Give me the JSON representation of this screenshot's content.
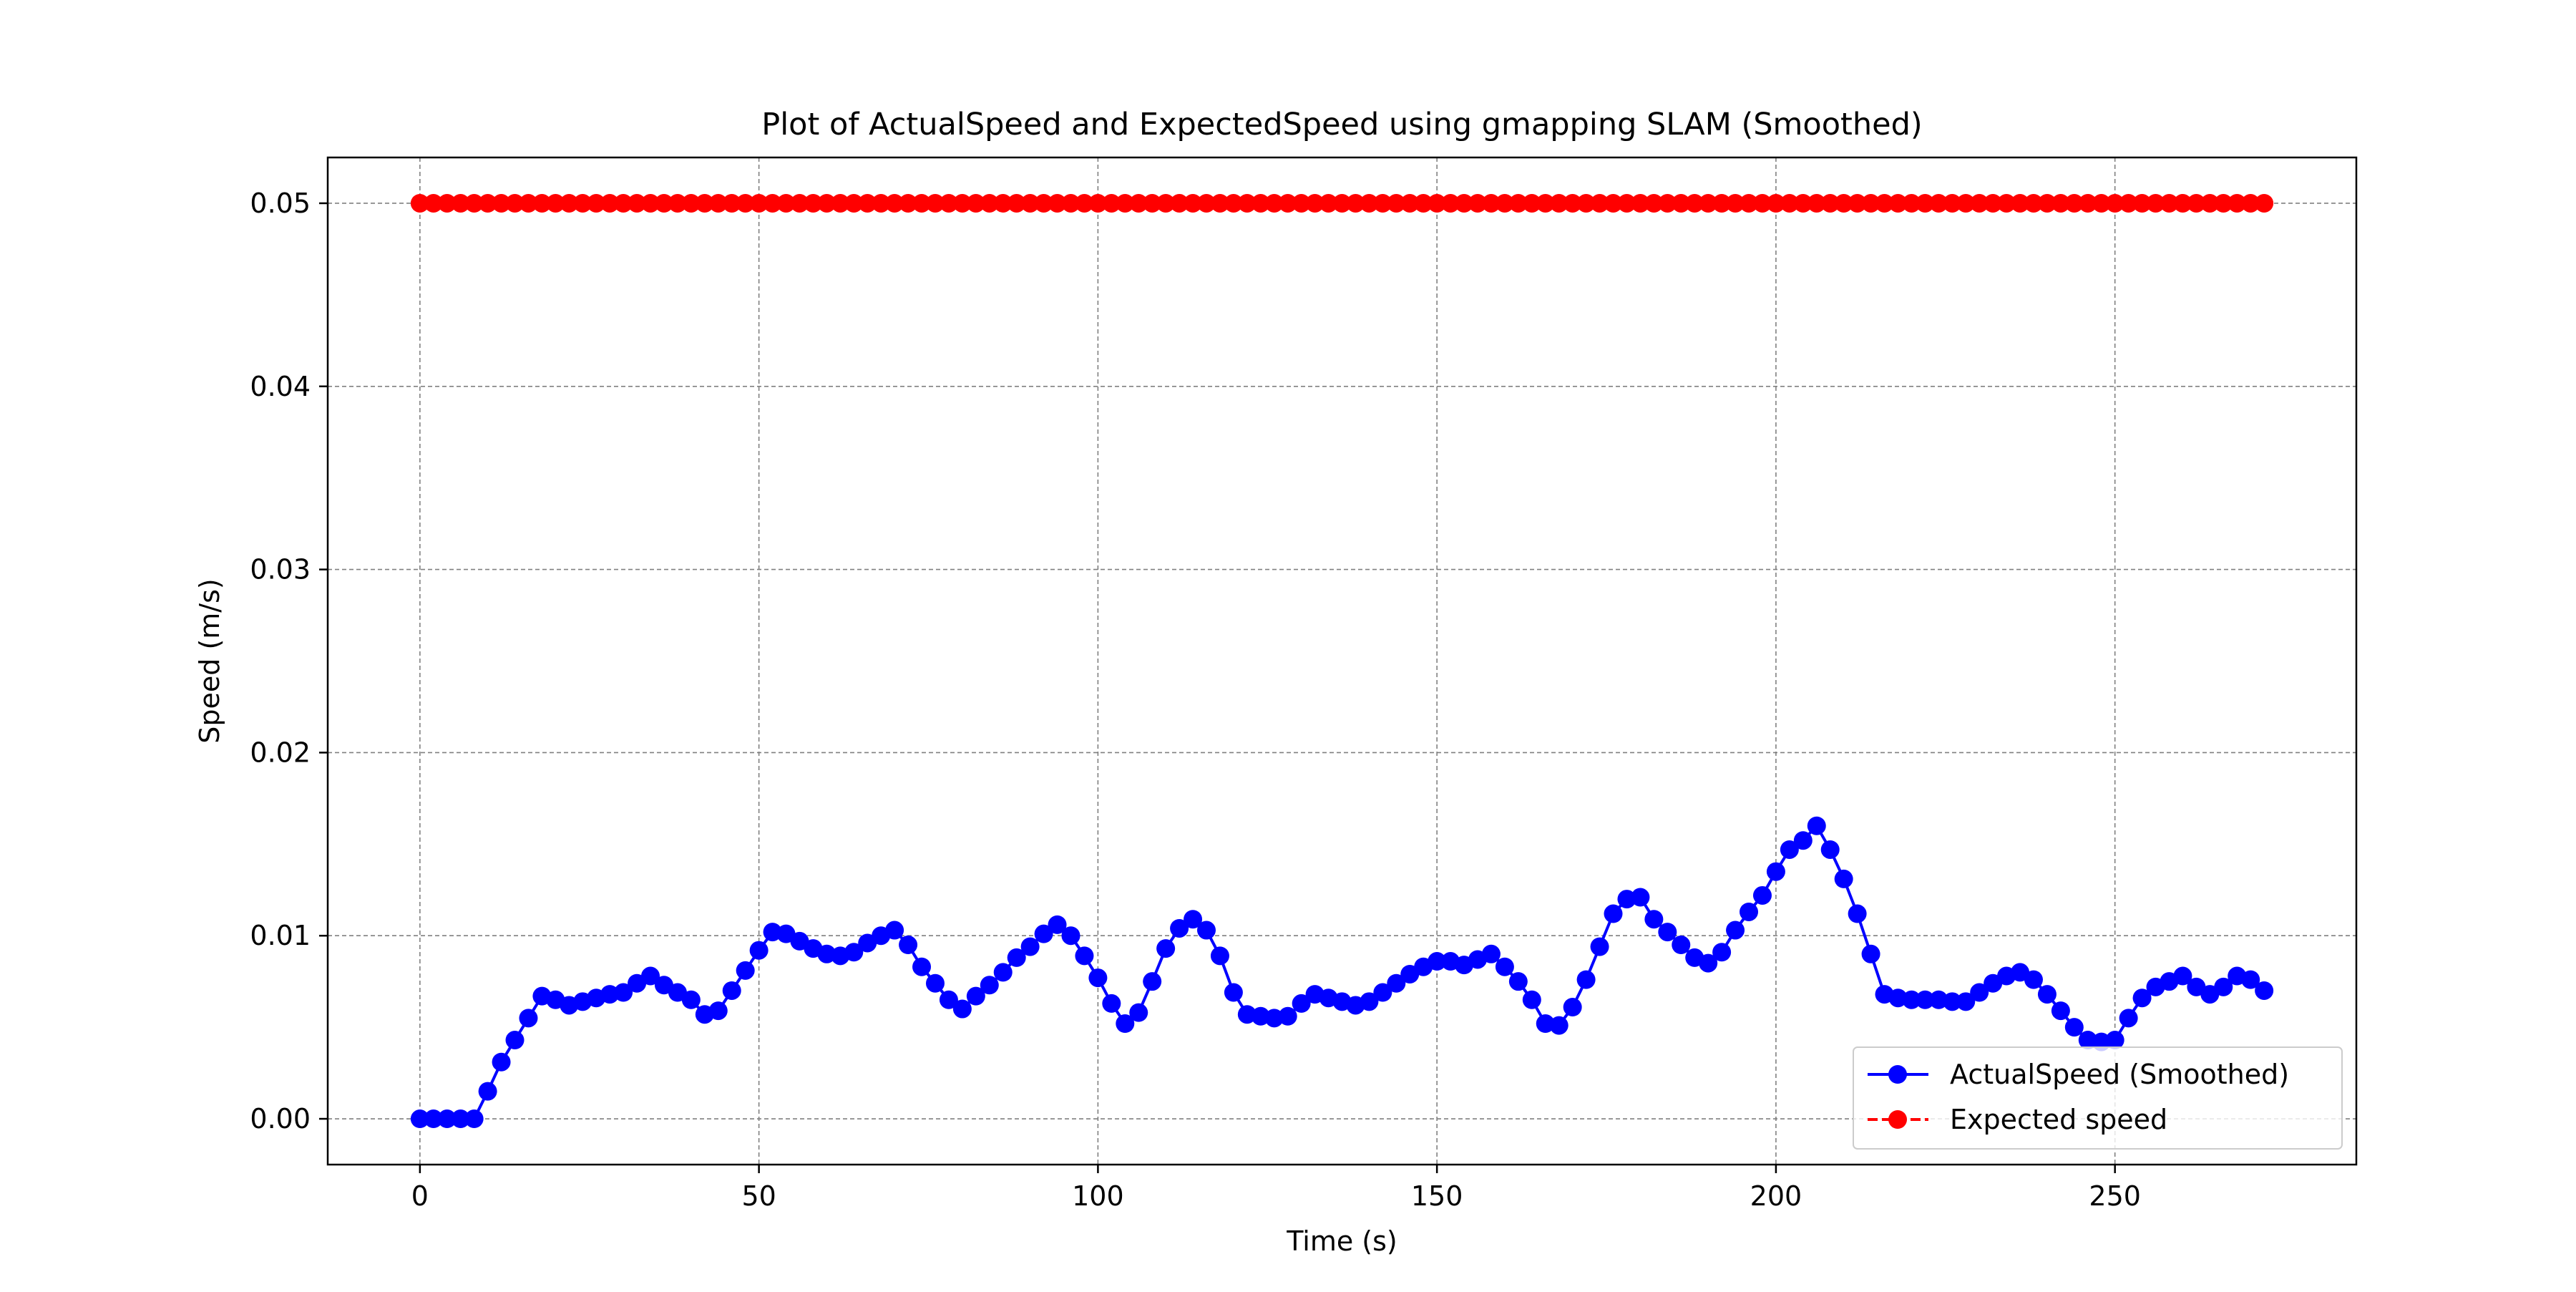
{
  "chart_data": {
    "type": "line",
    "title": "Plot of ActualSpeed and ExpectedSpeed using gmapping SLAM (Smoothed)",
    "xlabel": "Time (s)",
    "ylabel": "Speed (m/s)",
    "xlim": [
      -13.6,
      285.6
    ],
    "ylim": [
      -0.0025,
      0.0525
    ],
    "x_ticks": [
      0,
      50,
      100,
      150,
      200,
      250
    ],
    "y_ticks": [
      0.0,
      0.01,
      0.02,
      0.03,
      0.04,
      0.05
    ],
    "x_tick_labels": [
      "0",
      "50",
      "100",
      "150",
      "200",
      "250"
    ],
    "y_tick_labels": [
      "0.00",
      "0.01",
      "0.02",
      "0.03",
      "0.04",
      "0.05"
    ],
    "grid": true,
    "legend_position": "lower right",
    "series": [
      {
        "name": "ActualSpeed (Smoothed)",
        "color": "#0000ff",
        "linestyle": "solid",
        "marker": "circle",
        "x": [
          0,
          2,
          4,
          6,
          8,
          10,
          12,
          14,
          16,
          18,
          20,
          22,
          24,
          26,
          28,
          30,
          32,
          34,
          36,
          38,
          40,
          42,
          44,
          46,
          48,
          50,
          52,
          54,
          56,
          58,
          60,
          62,
          64,
          66,
          68,
          70,
          72,
          74,
          76,
          78,
          80,
          82,
          84,
          86,
          88,
          90,
          92,
          94,
          96,
          98,
          100,
          102,
          104,
          106,
          108,
          110,
          112,
          114,
          116,
          118,
          120,
          122,
          124,
          126,
          128,
          130,
          132,
          134,
          136,
          138,
          140,
          142,
          144,
          146,
          148,
          150,
          152,
          154,
          156,
          158,
          160,
          162,
          164,
          166,
          168,
          170,
          172,
          174,
          176,
          178,
          180,
          182,
          184,
          186,
          188,
          190,
          192,
          194,
          196,
          198,
          200,
          202,
          204,
          206,
          208,
          210,
          212,
          214,
          216,
          218,
          220,
          222,
          224,
          226,
          228,
          230,
          232,
          234,
          236,
          238,
          240,
          242,
          244,
          246,
          248,
          250,
          252,
          254,
          256,
          258,
          260,
          262,
          264,
          266,
          268,
          270,
          272
        ],
        "values": [
          0.0,
          0.0,
          0.0,
          0.0,
          0.0,
          0.0015,
          0.0031,
          0.0043,
          0.0055,
          0.0067,
          0.0065,
          0.0062,
          0.0064,
          0.0066,
          0.0068,
          0.0069,
          0.0074,
          0.0078,
          0.0073,
          0.0069,
          0.0065,
          0.0057,
          0.0059,
          0.007,
          0.0081,
          0.0092,
          0.0102,
          0.0101,
          0.0097,
          0.0093,
          0.009,
          0.0089,
          0.0091,
          0.0096,
          0.01,
          0.0103,
          0.0095,
          0.0083,
          0.0074,
          0.0065,
          0.006,
          0.0067,
          0.0073,
          0.008,
          0.0088,
          0.0094,
          0.0101,
          0.0106,
          0.01,
          0.0089,
          0.0077,
          0.0063,
          0.0052,
          0.0058,
          0.0075,
          0.0093,
          0.0104,
          0.0109,
          0.0103,
          0.0089,
          0.0069,
          0.0057,
          0.0056,
          0.0055,
          0.0056,
          0.0063,
          0.0068,
          0.0066,
          0.0064,
          0.0062,
          0.0064,
          0.0069,
          0.0074,
          0.0079,
          0.0083,
          0.0086,
          0.0086,
          0.0084,
          0.0087,
          0.009,
          0.0083,
          0.0075,
          0.0065,
          0.0052,
          0.0051,
          0.0061,
          0.0076,
          0.0094,
          0.0112,
          0.012,
          0.0121,
          0.0109,
          0.0102,
          0.0095,
          0.0088,
          0.0085,
          0.0091,
          0.0103,
          0.0113,
          0.0122,
          0.0135,
          0.0147,
          0.0152,
          0.016,
          0.0147,
          0.0131,
          0.0112,
          0.009,
          0.0068,
          0.0066,
          0.0065,
          0.0065,
          0.0065,
          0.0064,
          0.0064,
          0.0069,
          0.0074,
          0.0078,
          0.008,
          0.0076,
          0.0068,
          0.0059,
          0.005,
          0.0043,
          0.0042,
          0.0043,
          0.0055,
          0.0066,
          0.0072,
          0.0075,
          0.0078,
          0.0072,
          0.0068,
          0.0072,
          0.0078,
          0.0076,
          0.007
        ]
      },
      {
        "name": "Expected speed",
        "color": "#ff0000",
        "linestyle": "dashed",
        "marker": "circle",
        "x": [
          0,
          2,
          4,
          6,
          8,
          10,
          12,
          14,
          16,
          18,
          20,
          22,
          24,
          26,
          28,
          30,
          32,
          34,
          36,
          38,
          40,
          42,
          44,
          46,
          48,
          50,
          52,
          54,
          56,
          58,
          60,
          62,
          64,
          66,
          68,
          70,
          72,
          74,
          76,
          78,
          80,
          82,
          84,
          86,
          88,
          90,
          92,
          94,
          96,
          98,
          100,
          102,
          104,
          106,
          108,
          110,
          112,
          114,
          116,
          118,
          120,
          122,
          124,
          126,
          128,
          130,
          132,
          134,
          136,
          138,
          140,
          142,
          144,
          146,
          148,
          150,
          152,
          154,
          156,
          158,
          160,
          162,
          164,
          166,
          168,
          170,
          172,
          174,
          176,
          178,
          180,
          182,
          184,
          186,
          188,
          190,
          192,
          194,
          196,
          198,
          200,
          202,
          204,
          206,
          208,
          210,
          212,
          214,
          216,
          218,
          220,
          222,
          224,
          226,
          228,
          230,
          232,
          234,
          236,
          238,
          240,
          242,
          244,
          246,
          248,
          250,
          252,
          254,
          256,
          258,
          260,
          262,
          264,
          266,
          268,
          270,
          272
        ],
        "constant_value": 0.05
      }
    ]
  }
}
